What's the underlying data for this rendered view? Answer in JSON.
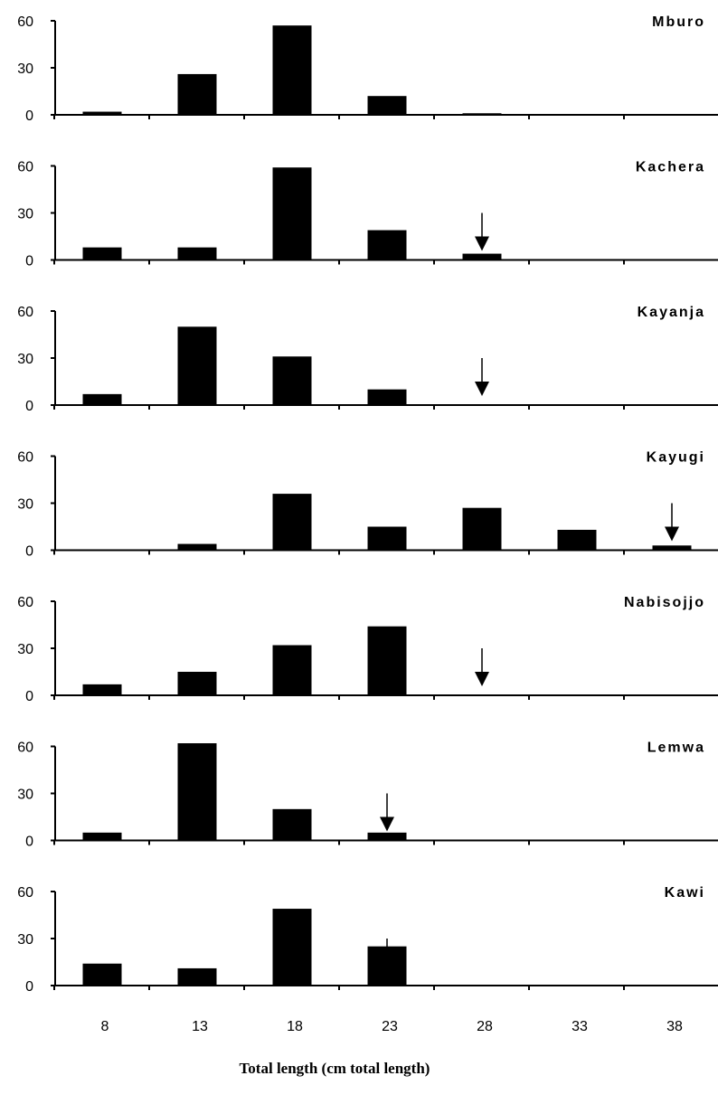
{
  "chart_data": {
    "type": "bar",
    "xlabel": "Total length (cm total length)",
    "categories": [
      "8",
      "13",
      "18",
      "23",
      "28",
      "33",
      "38"
    ],
    "ylim": [
      0,
      60
    ],
    "yticks": [
      "0",
      "30",
      "60"
    ],
    "grid": false,
    "panels": [
      {
        "name": "Mburo",
        "values": [
          2,
          26,
          57,
          12,
          1,
          0,
          0
        ],
        "arrow": null
      },
      {
        "name": "Kachera",
        "values": [
          8,
          8,
          59,
          19,
          4,
          0,
          0
        ],
        "arrow": "28"
      },
      {
        "name": "Kayanja",
        "values": [
          7,
          50,
          31,
          10,
          0,
          0,
          0
        ],
        "arrow": "28"
      },
      {
        "name": "Kayugi",
        "values": [
          0,
          4,
          36,
          15,
          27,
          13,
          3
        ],
        "arrow": "38"
      },
      {
        "name": "Nabisojjo",
        "values": [
          7,
          15,
          32,
          44,
          0,
          0,
          0
        ],
        "arrow": "28"
      },
      {
        "name": "Lemwa",
        "values": [
          5,
          62,
          20,
          5,
          0,
          0,
          0
        ],
        "arrow": "23"
      },
      {
        "name": "Kawi",
        "values": [
          14,
          11,
          49,
          25,
          0,
          0,
          0
        ],
        "arrow": "23"
      }
    ]
  }
}
